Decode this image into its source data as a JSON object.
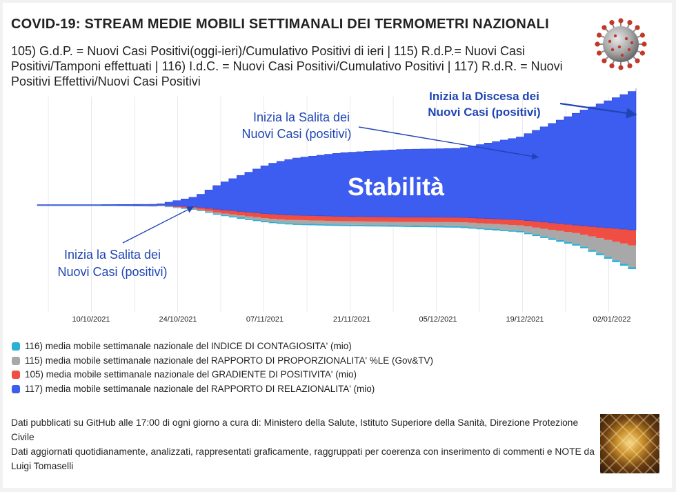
{
  "header": {
    "title": "COVID-19: STREAM MEDIE MOBILI SETTIMANALI DEI TERMOMETRI NAZIONALI",
    "subtitle": "105) G.d.P. = Nuovi Casi Positivi(oggi-ieri)/Cumulativo Positivi di ieri | 115) R.d.P.= Nuovi Casi Positivi/Tamponi effettuati | 116) I.d.C. = Nuovi Casi Positivi/Cumulativo Positivi | 117) R.d.R. = Nuovi Positivi Effettivi/Nuovi Casi Positivi"
  },
  "annotations": {
    "salita_left_line1": "Inizia la Salita dei",
    "salita_left_line2": "Nuovi Casi (positivi)",
    "salita_mid_line1": "Inizia la Salita dei",
    "salita_mid_line2": "Nuovi Casi (positivi)",
    "discesa_line1": "Inizia la Discesa dei",
    "discesa_line2": "Nuovi Casi (positivi)",
    "stabilita": "Stabilità"
  },
  "chart_data": {
    "type": "area",
    "style": "streamgraph",
    "x_tick_labels": [
      "10/10/2021",
      "24/10/2021",
      "07/11/2021",
      "21/11/2021",
      "05/12/2021",
      "19/12/2021",
      "02/01/2022"
    ],
    "grid": true,
    "relative_time": [
      0,
      10,
      20,
      26,
      30,
      34,
      38,
      42,
      50,
      60,
      70,
      80,
      90,
      100
    ],
    "series": [
      {
        "name": "117) media mobile settimanale nazionale del RAPPORTO DI RELAZIONALITA' (mio)",
        "color": "#3d5cf0",
        "thickness": [
          1,
          1,
          2,
          15,
          38,
          55,
          72,
          82,
          92,
          98,
          100,
          120,
          165,
          206
        ]
      },
      {
        "name": "105) media mobile settimanale nazionale del GRADIENTE DI POSITIVITA' (mio)",
        "color": "#f04e43",
        "thickness": [
          0.3,
          0.3,
          0.5,
          3,
          5,
          6,
          7,
          7,
          7,
          7,
          7,
          8,
          12,
          24
        ]
      },
      {
        "name": "115) media mobile settimanale nazionale del RAPPORTO DI PROPORZIONALITA' %LE (Gov&TV)",
        "color": "#a8a8a8",
        "thickness": [
          0.2,
          0.2,
          0.3,
          1,
          2,
          3,
          4,
          5,
          5,
          5,
          6,
          8,
          16,
          34
        ]
      },
      {
        "name": "116) media mobile settimanale nazionale del INDICE DI CONTAGIOSITA' (mio)",
        "color": "#2ab0d6",
        "thickness": [
          0.5,
          0.5,
          0.6,
          1,
          1.5,
          2,
          2,
          2,
          2,
          2,
          2,
          2,
          2.5,
          3
        ]
      }
    ]
  },
  "legend": [
    {
      "label": "116) media mobile settimanale nazionale del INDICE DI CONTAGIOSITA' (mio)",
      "color": "#2ab0d6"
    },
    {
      "label": "115) media mobile settimanale nazionale del RAPPORTO DI PROPORZIONALITA' %LE (Gov&TV)",
      "color": "#a8a8a8"
    },
    {
      "label": "105) media mobile settimanale nazionale del GRADIENTE DI POSITIVITA' (mio)",
      "color": "#f04e43"
    },
    {
      "label": "117) media mobile settimanale nazionale del RAPPORTO DI RELAZIONALITA' (mio)",
      "color": "#3d5cf0"
    }
  ],
  "footer": {
    "line1": "Dati pubblicati su GitHub alle 17:00 di ogni giorno a cura di: Ministero della Salute, Istituto Superiore della Sanità, Direzione Protezione Civile",
    "line2": "Dati aggiornati quotidianamente, analizzati, rappresentati graficamente, raggruppati per coerenza con inserimento di commenti e NOTE da Luigi Tomaselli"
  },
  "icons": {
    "virus": "coronavirus-icon",
    "photo": "author-photo"
  }
}
